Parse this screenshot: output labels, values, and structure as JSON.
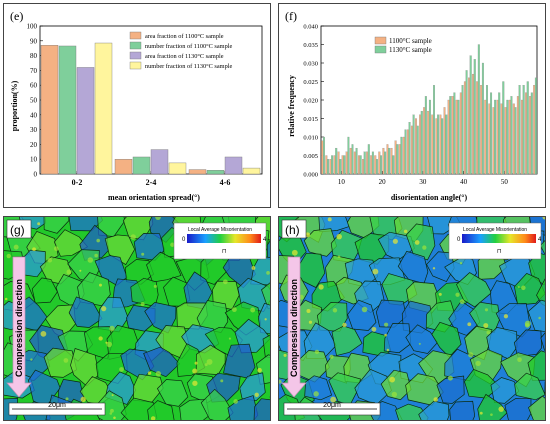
{
  "panels": {
    "e": {
      "label": "(e)"
    },
    "f": {
      "label": "(f)"
    },
    "g": {
      "label": "(g)"
    },
    "h": {
      "label": "(h)"
    }
  },
  "chart_data": [
    {
      "id": "e",
      "type": "bar",
      "categories": [
        "0-2",
        "2-4",
        "4-6"
      ],
      "series": [
        {
          "name": "area fraction of 1100°C sample",
          "color": "#f4b183",
          "values": [
            87,
            10,
            3
          ]
        },
        {
          "name": "number fraction of 1100°C sample",
          "color": "#7fcf9b",
          "values": [
            86.5,
            11.5,
            2.5
          ]
        },
        {
          "name": "area fraction of 1130°C sample",
          "color": "#b4a7d6",
          "values": [
            72,
            16.5,
            11.5
          ]
        },
        {
          "name": "number fraction of 1130°C sample",
          "color": "#fff59d",
          "values": [
            88.5,
            7.5,
            4
          ]
        }
      ],
      "xlabel": "mean orientation spread(°)",
      "ylabel": "proportion(%)",
      "ylim": [
        0,
        100
      ],
      "yticks": [
        0,
        10,
        20,
        30,
        40,
        50,
        60,
        70,
        80,
        90,
        100
      ],
      "legend": "top-right"
    },
    {
      "id": "f",
      "type": "bar",
      "x_start": 5,
      "x_step": 1,
      "series": [
        {
          "name": "1100°C sample",
          "color": "#f4b183",
          "values": [
            0.009,
            0.005,
            0.004,
            0.005,
            0.006,
            0.005,
            0.006,
            0.007,
            0.006,
            0.005,
            0.004,
            0.006,
            0.005,
            0.005,
            0.006,
            0.007,
            0.008,
            0.007,
            0.009,
            0.008,
            0.01,
            0.012,
            0.013,
            0.015,
            0.016,
            0.018,
            0.017,
            0.016,
            0.015,
            0.016,
            0.018,
            0.02,
            0.021,
            0.02,
            0.022,
            0.025,
            0.026,
            0.027,
            0.025,
            0.024,
            0.02,
            0.019,
            0.018,
            0.02,
            0.019,
            0.018,
            0.02,
            0.019,
            0.021,
            0.02,
            0.022,
            0.021,
            0.024
          ]
        },
        {
          "name": "1130°C sample",
          "color": "#7fcf9b",
          "values": [
            0.01,
            0.004,
            0.005,
            0.007,
            0.004,
            0.005,
            0.01,
            0.008,
            0.007,
            0.005,
            0.006,
            0.008,
            0.006,
            0.004,
            0.005,
            0.006,
            0.007,
            0.005,
            0.008,
            0.01,
            0.012,
            0.014,
            0.016,
            0.013,
            0.017,
            0.021,
            0.02,
            0.024,
            0.016,
            0.015,
            0.016,
            0.021,
            0.022,
            0.02,
            0.024,
            0.028,
            0.032,
            0.031,
            0.035,
            0.03,
            0.024,
            0.022,
            0.02,
            0.022,
            0.025,
            0.02,
            0.021,
            0.018,
            0.024,
            0.024,
            0.025,
            0.022,
            0.026
          ]
        }
      ],
      "xlabel": "disorientation angle(°)",
      "ylabel": "relative frequency",
      "xlim": [
        5,
        58
      ],
      "xticks": [
        10,
        20,
        30,
        40,
        50
      ],
      "ylim": [
        0,
        0.04
      ],
      "yticks": [
        "0.000",
        "0.005",
        "0.010",
        "0.015",
        "0.020",
        "0.025",
        "0.030",
        "0.035",
        "0.040"
      ],
      "legend": "top-left"
    }
  ],
  "maps": {
    "g": {
      "legend_title": "Local Average Misorientation",
      "scale_min": "0",
      "scale_max": "4",
      "scale_bar": "20μm",
      "arrow_label": "Compression direction",
      "dominant_color": "#22c92a",
      "secondary_color": "#1d5ec7"
    },
    "h": {
      "legend_title": "Local Average Misorientation",
      "scale_min": "0",
      "scale_max": "4",
      "scale_bar": "20μm",
      "arrow_label": "Compression direction",
      "dominant_color": "#1f7fd8",
      "secondary_color": "#22c92a"
    }
  }
}
